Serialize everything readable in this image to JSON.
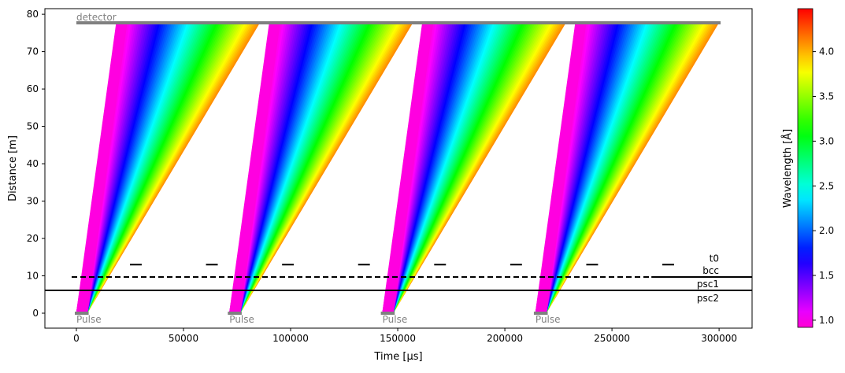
{
  "chart_data": {
    "type": "line",
    "title": "",
    "xlabel": "Time [µs]",
    "ylabel": "Distance [m]",
    "xlim": [
      -14700,
      315400
    ],
    "ylim": [
      -4.0,
      81.5
    ],
    "xticks": [
      0,
      50000,
      100000,
      150000,
      200000,
      250000,
      300000
    ],
    "yticks": [
      0,
      10,
      20,
      30,
      40,
      50,
      60,
      70,
      80
    ],
    "pulses": {
      "label": "Pulse",
      "start_times": [
        0,
        71429,
        142857,
        214286
      ],
      "duration": 5000,
      "wavelength_range": [
        0.95,
        4.1
      ]
    },
    "detector": {
      "label": "detector",
      "distance": 77.7,
      "t_end": 300700
    },
    "choppers": [
      {
        "label": "t0",
        "distance": 13.0,
        "segments": [
          [
            25000,
            30500
          ],
          [
            60500,
            66000
          ],
          [
            96000,
            101500
          ],
          [
            131500,
            137000
          ],
          [
            167000,
            172500
          ],
          [
            202500,
            208000
          ],
          [
            238000,
            243500
          ],
          [
            273500,
            279000
          ]
        ],
        "style": "solid"
      },
      {
        "label": "bcc",
        "distance": 9.68,
        "segments": [
          [
            -2200,
            268400
          ]
        ],
        "style": "dashed",
        "solid_segments": [
          [
            268400,
            315400
          ]
        ]
      },
      {
        "label": "psc1",
        "distance": 6.1,
        "segments": [
          [
            -14700,
            315400
          ]
        ],
        "style": "solid"
      },
      {
        "label": "psc2",
        "distance": 6.1,
        "segments": [
          [
            -14700,
            315400
          ]
        ],
        "style": "solid"
      }
    ],
    "colorbar": {
      "label": "Wavelength [Å]",
      "range": [
        0.92,
        4.48
      ],
      "ticks": [
        1.0,
        1.5,
        2.0,
        2.5,
        3.0,
        3.5,
        4.0
      ],
      "colormap": "gist_rainbow"
    },
    "colors": {
      "detector": "#808080",
      "pulse": "#808080",
      "chopper": "#000000"
    }
  }
}
